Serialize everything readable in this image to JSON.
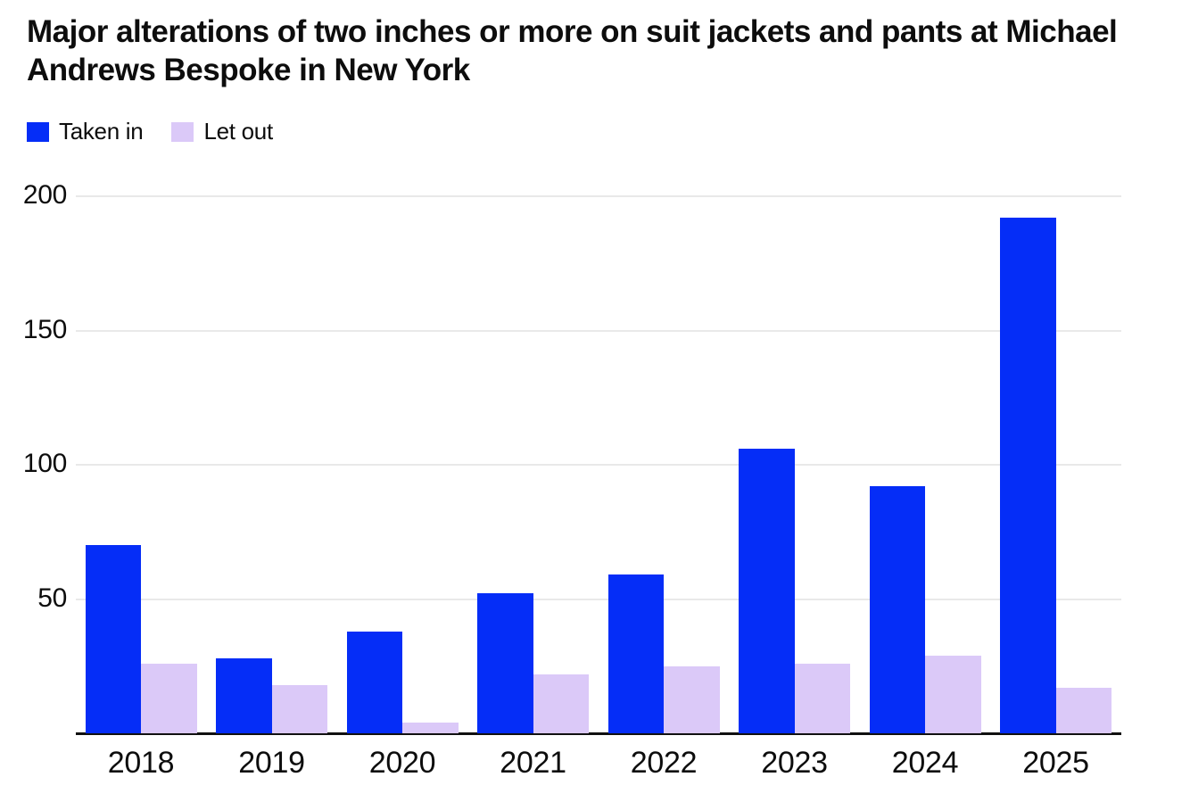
{
  "chart_data": {
    "type": "bar",
    "title": "Major alterations of two inches or more on suit jackets and pants at Michael Andrews Bespoke in New York",
    "categories": [
      "2018",
      "2019",
      "2020",
      "2021",
      "2022",
      "2023",
      "2024",
      "2025"
    ],
    "series": [
      {
        "name": "Taken in",
        "color": "#052df7",
        "values": [
          70,
          28,
          38,
          52,
          59,
          106,
          92,
          192
        ]
      },
      {
        "name": "Let out",
        "color": "#dbc9f8",
        "values": [
          26,
          18,
          4,
          22,
          25,
          26,
          29,
          17
        ]
      }
    ],
    "xlabel": "",
    "ylabel": "",
    "ylim": [
      0,
      200
    ],
    "yticks": [
      50,
      100,
      150,
      200
    ],
    "grid": "horizontal",
    "legend_position": "top-left"
  },
  "colors": {
    "background": "#ffffff",
    "gridline": "#e9e9e9",
    "axis": "#111111",
    "text": "#0d0d0d"
  }
}
